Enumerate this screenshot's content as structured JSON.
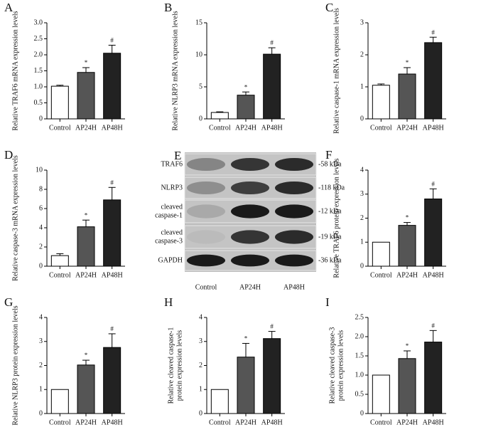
{
  "chart_data": [
    {
      "type": "bar",
      "panel": "A",
      "ylabel": [
        "Relative TRAF6 mRNA expression levels"
      ],
      "categories": [
        "Control",
        "AP24H",
        "AP48H"
      ],
      "values": [
        1.02,
        1.45,
        2.05
      ],
      "errors": [
        0.03,
        0.15,
        0.25
      ],
      "annotations": [
        null,
        "*",
        "#"
      ],
      "colors": [
        "#ffffff",
        "#555555",
        "#222222"
      ],
      "ylim": [
        0,
        3
      ],
      "yticks": [
        0,
        0.5,
        {
          "value": 1,
          "label": "1.0"
        },
        1.5,
        {
          "value": 2,
          "label": "2.0"
        },
        2.5,
        {
          "value": 3,
          "label": "3.0"
        }
      ]
    },
    {
      "type": "bar",
      "panel": "B",
      "ylabel": [
        "Relative NLRP3 mRNA expression levels"
      ],
      "categories": [
        "Control",
        "AP24H",
        "AP48H"
      ],
      "values": [
        1.0,
        3.7,
        10.1
      ],
      "errors": [
        0.1,
        0.5,
        1.0
      ],
      "annotations": [
        null,
        "*",
        "#"
      ],
      "colors": [
        "#ffffff",
        "#555555",
        "#222222"
      ],
      "ylim": [
        0,
        15
      ],
      "yticks": [
        0,
        5,
        10,
        15
      ]
    },
    {
      "type": "bar",
      "panel": "C",
      "ylabel": [
        "Relative caspase-1 mRNA expression levels"
      ],
      "categories": [
        "Control",
        "AP24H",
        "AP48H"
      ],
      "values": [
        1.05,
        1.4,
        2.38
      ],
      "errors": [
        0.04,
        0.2,
        0.17
      ],
      "annotations": [
        null,
        "*",
        "#"
      ],
      "colors": [
        "#ffffff",
        "#555555",
        "#222222"
      ],
      "ylim": [
        0,
        3
      ],
      "yticks": [
        0,
        1,
        2,
        3
      ]
    },
    {
      "type": "bar",
      "panel": "D",
      "ylabel": [
        "Relative caspase-3 mRNA expression levels"
      ],
      "categories": [
        "Control",
        "AP24H",
        "AP48H"
      ],
      "values": [
        1.1,
        4.1,
        6.9
      ],
      "errors": [
        0.2,
        0.7,
        1.3
      ],
      "annotations": [
        null,
        "*",
        "#"
      ],
      "colors": [
        "#ffffff",
        "#555555",
        "#222222"
      ],
      "ylim": [
        0,
        10
      ],
      "yticks": [
        0,
        2,
        4,
        6,
        8,
        10
      ]
    },
    {
      "type": "bar",
      "panel": "F",
      "ylabel": [
        "Relative TRAF6 protein expression levels"
      ],
      "categories": [
        "Control",
        "AP24H",
        "AP48H"
      ],
      "values": [
        1.0,
        1.7,
        2.8
      ],
      "errors": [
        0,
        0.12,
        0.42
      ],
      "annotations": [
        null,
        "*",
        "#"
      ],
      "colors": [
        "#ffffff",
        "#555555",
        "#222222"
      ],
      "ylim": [
        0,
        4
      ],
      "yticks": [
        0,
        1,
        2,
        3,
        4
      ]
    },
    {
      "type": "bar",
      "panel": "G",
      "ylabel": [
        "Relative NLRP3 protein expression levels"
      ],
      "categories": [
        "Control",
        "AP24H",
        "AP48H"
      ],
      "values": [
        1.0,
        2.02,
        2.75
      ],
      "errors": [
        0,
        0.2,
        0.57
      ],
      "annotations": [
        null,
        "*",
        "#"
      ],
      "colors": [
        "#ffffff",
        "#555555",
        "#222222"
      ],
      "ylim": [
        0,
        4
      ],
      "yticks": [
        0,
        1,
        2,
        3,
        4
      ]
    },
    {
      "type": "bar",
      "panel": "H",
      "ylabel": [
        "Relative cleaved caspase-1",
        "protein expression levels"
      ],
      "categories": [
        "Control",
        "AP24H",
        "AP48H"
      ],
      "values": [
        1.0,
        2.35,
        3.12
      ],
      "errors": [
        0,
        0.57,
        0.3
      ],
      "annotations": [
        null,
        "*",
        "#"
      ],
      "colors": [
        "#ffffff",
        "#555555",
        "#222222"
      ],
      "ylim": [
        0,
        4
      ],
      "yticks": [
        0,
        1,
        2,
        3,
        4
      ]
    },
    {
      "type": "bar",
      "panel": "I",
      "ylabel": [
        "Relative cleaved caspase-3",
        "protein expression levels"
      ],
      "categories": [
        "Control",
        "AP24H",
        "AP48H"
      ],
      "values": [
        1.0,
        1.43,
        1.86
      ],
      "errors": [
        0,
        0.2,
        0.3
      ],
      "annotations": [
        null,
        "*",
        "#"
      ],
      "colors": [
        "#ffffff",
        "#555555",
        "#222222"
      ],
      "ylim": [
        0,
        2.5
      ],
      "yticks": [
        0,
        0.5,
        {
          "value": 1,
          "label": "1.0"
        },
        1.5,
        {
          "value": 2,
          "label": "2.0"
        },
        2.5
      ]
    }
  ],
  "blot": {
    "panel": "E",
    "rows": [
      {
        "label": [
          "TRAF6"
        ],
        "size": "-58 kDa"
      },
      {
        "label": [
          "NLRP3"
        ],
        "size": "-118 kDa"
      },
      {
        "label": [
          "cleaved",
          "caspase-1"
        ],
        "size": "-12 kDa"
      },
      {
        "label": [
          "cleaved",
          "caspase-3"
        ],
        "size": "-19 kDa"
      },
      {
        "label": [
          "GAPDH"
        ],
        "size": "-36 kDa"
      }
    ],
    "lanes": [
      "Control",
      "AP24H",
      "AP48H"
    ]
  }
}
